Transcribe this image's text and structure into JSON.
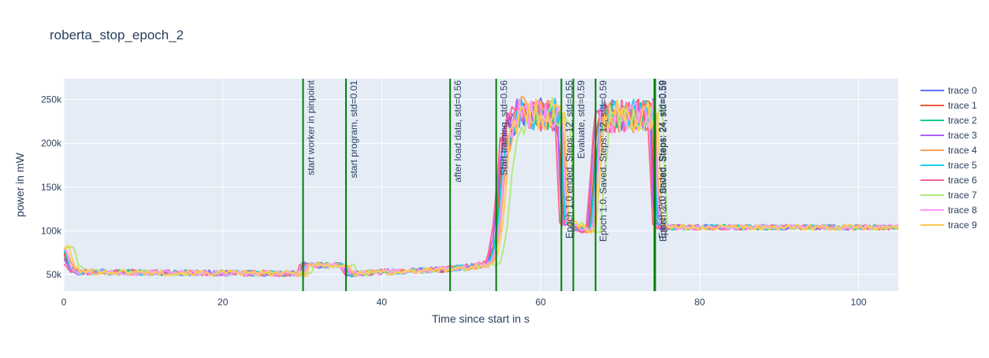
{
  "chart_data": {
    "type": "line",
    "title": "roberta_stop_epoch_2",
    "xlabel": "Time since start in s",
    "ylabel": "power in mW",
    "xlim": [
      0,
      105
    ],
    "ylim": [
      31000,
      274000
    ],
    "x_ticks": [
      0,
      20,
      40,
      60,
      80,
      100
    ],
    "x_tick_labels": [
      "0",
      "20",
      "40",
      "60",
      "80",
      "100"
    ],
    "y_ticks": [
      50000,
      100000,
      150000,
      200000,
      250000
    ],
    "y_tick_labels": [
      "50k",
      "100k",
      "150k",
      "200k",
      "250k"
    ],
    "grid": true,
    "legend_position": "right",
    "profile_description": "piecewise power profile; each trace is profile plus jitter",
    "profile_x": [
      0,
      0.6,
      1.5,
      30,
      30.1,
      35.5,
      35.6,
      48.5,
      53.5,
      54.4,
      55.4,
      57,
      62.4,
      62.9,
      63.8,
      64.2,
      65.5,
      66.2,
      66.8,
      67.3,
      74.1,
      74.5,
      75.3,
      76,
      105
    ],
    "profile_y": [
      80000,
      60000,
      53000,
      51000,
      61000,
      60000,
      51000,
      56000,
      62000,
      95000,
      200000,
      235000,
      232000,
      108000,
      110000,
      105000,
      100000,
      100000,
      170000,
      230000,
      232000,
      110000,
      103000,
      104000,
      104000
    ],
    "series": [
      {
        "name": "trace 0",
        "color": "#636efa",
        "shift": 0.25,
        "seed": 11
      },
      {
        "name": "trace 1",
        "color": "#ef553b",
        "shift": -0.1,
        "seed": 23
      },
      {
        "name": "trace 2",
        "color": "#00cc96",
        "shift": 0.05,
        "seed": 37
      },
      {
        "name": "trace 3",
        "color": "#ab63fa",
        "shift": -0.3,
        "seed": 41
      },
      {
        "name": "trace 4",
        "color": "#ffa15a",
        "shift": 0.4,
        "seed": 53
      },
      {
        "name": "trace 5",
        "color": "#19d3f3",
        "shift": 0.15,
        "seed": 67
      },
      {
        "name": "trace 6",
        "color": "#ff6692",
        "shift": -0.5,
        "seed": 71
      },
      {
        "name": "trace 7",
        "color": "#b6e880",
        "shift": 1.3,
        "seed": 83
      },
      {
        "name": "trace 8",
        "color": "#ff97ff",
        "shift": 0.3,
        "seed": 97
      },
      {
        "name": "trace 9",
        "color": "#fecb52",
        "shift": 0.7,
        "seed": 101
      }
    ],
    "vlines": [
      {
        "x": 30.1,
        "label": "start worker in pinpoint"
      },
      {
        "x": 35.5,
        "label": "start program, std=0.01"
      },
      {
        "x": 48.6,
        "label": "after load data, std=0.56"
      },
      {
        "x": 54.4,
        "label": "Start training, std=0.56"
      },
      {
        "x": 62.6,
        "label": "Epoch 1.0 ended. Steps: 12, std=0.55"
      },
      {
        "x": 64.1,
        "label": "Evaluate, std=0.59"
      },
      {
        "x": 66.9,
        "label": "Epoch 1.0. Saved. Steps: 12, std=0.59"
      },
      {
        "x": 74.3,
        "label": "Epoch 2.0 ended. Steps: 24, std=0.59"
      },
      {
        "x": 74.4,
        "label": "Epoch 2.0. Saved. Steps: 24, std=0.59"
      }
    ],
    "vline_color": "#008000"
  }
}
